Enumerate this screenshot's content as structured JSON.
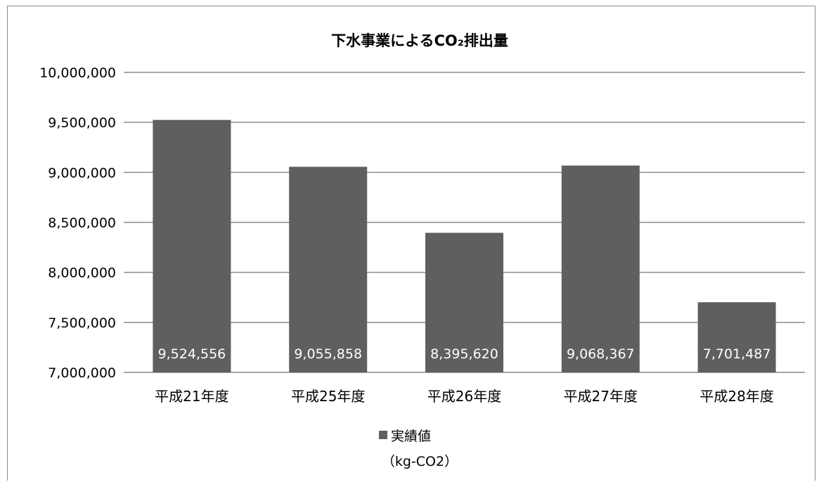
{
  "chart_data": {
    "type": "bar",
    "title": "下水事業によるCO₂排出量",
    "categories": [
      "平成21年度",
      "平成25年度",
      "平成26年度",
      "平成27年度",
      "平成28年度"
    ],
    "series": [
      {
        "name": "実績値",
        "values": [
          9524556,
          9055858,
          8395620,
          9068367,
          7701487
        ]
      }
    ],
    "data_labels": [
      "9,524,556",
      "9,055,858",
      "8,395,620",
      "9,068,367",
      "7,701,487"
    ],
    "ytick_labels": [
      "7,000,000",
      "7,500,000",
      "8,000,000",
      "8,500,000",
      "9,000,000",
      "9,500,000",
      "10,000,000"
    ],
    "ylim": [
      7000000,
      10000000
    ],
    "ystep": 500000,
    "grid": true,
    "legend": {
      "position": "bottom",
      "label": "実績値",
      "sublabel": "（kg-CO2）"
    },
    "colors": {
      "bar": "#5f5f5f",
      "grid": "#8c8c8c",
      "data_label": "#ffffff"
    }
  }
}
